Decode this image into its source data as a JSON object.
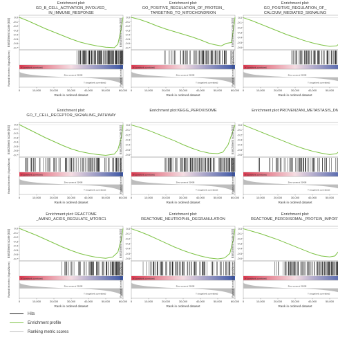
{
  "colors": {
    "hits": "#1a1a1a",
    "profile": "#7cc243",
    "ranking": "#bdbdbd",
    "positive": "#d9384e",
    "negative": "#3b55a5",
    "zero": "#888888"
  },
  "legend": [
    {
      "label": "Hits",
      "color": "#1a1a1a"
    },
    {
      "label": "Enrichment profile",
      "color": "#7cc243"
    },
    {
      "label": "Ranking metric scores",
      "color": "#bdbdbd"
    }
  ],
  "chart_data": [
    {
      "type": "line",
      "title": [
        "Enrichment plot:",
        "GO_B_CELL_ACTIVATION_INVOLVED_",
        "IN_IMMUNE_RESPONSE"
      ],
      "ylabel": "Enrichment score (ES)",
      "ylabel2": "Ranked list metric (Signal2Noise)",
      "xlabel": "Rank in ordered dataset",
      "xticks": [
        "0",
        "10,000",
        "20,000",
        "30,000",
        "40,000",
        "50,000",
        "60,000"
      ],
      "yticks": [
        "0.0",
        "-0.1",
        "-0.2",
        "-0.3",
        "-0.4",
        "-0.5",
        "-0.6",
        "-0.7"
      ],
      "ylim": [
        -0.75,
        0.05
      ],
      "x": [
        0,
        5000,
        10000,
        15000,
        20000,
        25000,
        30000,
        35000,
        40000,
        45000,
        50000,
        55000,
        57000,
        58500,
        60000
      ],
      "es": [
        0,
        -0.08,
        -0.17,
        -0.26,
        -0.34,
        -0.42,
        -0.5,
        -0.57,
        -0.62,
        -0.66,
        -0.69,
        -0.7,
        -0.62,
        -0.35,
        0
      ],
      "hits_start": 0.55,
      "pos_label": "'h' (positively correlated)",
      "zero_label": "Zero cross at 31408",
      "neg_label": "'l' (negatively correlated)"
    },
    {
      "type": "line",
      "title": [
        "Enrichment plot:",
        "GO_POSITIVE_REGULATION_OF_PROTEIN_",
        "TARGETING_TO_MITOCHONDRION"
      ],
      "ylabel": "Enrichment score (ES)",
      "ylabel2": "Ranked list metric (Signal2Noise)",
      "xlabel": "Rank in ordered dataset",
      "xticks": [
        "0",
        "10,000",
        "20,000",
        "30,000",
        "40,000",
        "50,000",
        "60,000"
      ],
      "yticks": [
        "0.0",
        "-0.1",
        "-0.2",
        "-0.3",
        "-0.4",
        "-0.5",
        "-0.6",
        "-0.7"
      ],
      "ylim": [
        -0.75,
        0.05
      ],
      "x": [
        0,
        5000,
        10000,
        15000,
        20000,
        25000,
        30000,
        35000,
        40000,
        45000,
        48000,
        52000,
        55000,
        58000,
        60000
      ],
      "es": [
        0,
        -0.05,
        -0.12,
        -0.2,
        -0.27,
        -0.33,
        -0.39,
        -0.45,
        -0.52,
        -0.6,
        -0.63,
        -0.66,
        -0.6,
        -0.58,
        0
      ],
      "hits_start": 0.3,
      "pos_label": "'h' (positively correlated)",
      "zero_label": "Zero cross at 31408",
      "neg_label": "'l' (negatively correlated)"
    },
    {
      "type": "line",
      "title": [
        "Enrichment plot:",
        "GO_POSITIVE_REGULATION_OF_",
        "CALCIUM_MEDIATED_SIGNALING"
      ],
      "ylabel": "Enrichment score (ES)",
      "ylabel2": "Ranked list metric (Signal2Noise)",
      "xlabel": "Rank in ordered dataset",
      "xticks": [
        "0",
        "10,000",
        "20,000",
        "30,000",
        "40,000",
        "50,000",
        "60,000"
      ],
      "yticks": [
        "0.0",
        "-0.1",
        "-0.2",
        "-0.3",
        "-0.4",
        "-0.5",
        "-0.6"
      ],
      "ylim": [
        -0.65,
        0.05
      ],
      "x": [
        0,
        5000,
        10000,
        15000,
        20000,
        25000,
        30000,
        35000,
        40000,
        45000,
        50000,
        54000,
        57000,
        59000,
        60000
      ],
      "es": [
        0,
        -0.06,
        -0.13,
        -0.2,
        -0.27,
        -0.34,
        -0.4,
        -0.46,
        -0.51,
        -0.55,
        -0.58,
        -0.57,
        -0.48,
        -0.25,
        0
      ],
      "hits_start": 0.45,
      "pos_label": "'h' (positively correlated)",
      "zero_label": "Zero cross at 31408",
      "neg_label": "'l' (negatively correlated)"
    },
    {
      "type": "line",
      "title": [
        "Enrichment plot:",
        "GO_T_CELL_RECEPTOR_SIGNALING_PATHWAY"
      ],
      "ylabel": "Enrichment score (ES)",
      "ylabel2": "Ranked list metric (Signal2Noise)",
      "xlabel": "Rank in ordered dataset",
      "xticks": [
        "0",
        "10,000",
        "20,000",
        "30,000",
        "40,000",
        "50,000",
        "60,000"
      ],
      "yticks": [
        "0.0",
        "-0.1",
        "-0.2",
        "-0.3",
        "-0.4",
        "-0.5",
        "-0.6",
        "-0.7"
      ],
      "ylim": [
        -0.75,
        0.05
      ],
      "x": [
        0,
        5000,
        10000,
        15000,
        20000,
        25000,
        30000,
        35000,
        40000,
        45000,
        50000,
        55000,
        57000,
        59000,
        60000
      ],
      "es": [
        0,
        -0.1,
        -0.2,
        -0.3,
        -0.39,
        -0.48,
        -0.56,
        -0.62,
        -0.66,
        -0.69,
        -0.71,
        -0.68,
        -0.58,
        -0.3,
        0
      ],
      "hits_start": 0.05,
      "pos_label": "'h' (positively correlated)",
      "zero_label": "Zero cross at 31408",
      "neg_label": "'l' (negatively correlated)"
    },
    {
      "type": "line",
      "title": [
        "Enrichment plot:KEGG_PEROXISOME"
      ],
      "ylabel": "Enrichment score (ES)",
      "ylabel2": "Ranked list metric (Signal2Noise)",
      "xlabel": "Rank in ordered dataset",
      "xticks": [
        "0",
        "10,000",
        "20,000",
        "30,000",
        "40,000",
        "50,000",
        "60,000"
      ],
      "yticks": [
        "0.0",
        "-0.1",
        "-0.2",
        "-0.3",
        "-0.4",
        "-0.5",
        "-0.6"
      ],
      "ylim": [
        -0.65,
        0.05
      ],
      "x": [
        0,
        5000,
        10000,
        15000,
        20000,
        25000,
        30000,
        35000,
        40000,
        45000,
        50000,
        53000,
        56000,
        58500,
        60000
      ],
      "es": [
        0,
        -0.05,
        -0.11,
        -0.18,
        -0.25,
        -0.32,
        -0.4,
        -0.47,
        -0.53,
        -0.57,
        -0.58,
        -0.55,
        -0.4,
        -0.15,
        0
      ],
      "hits_start": 0.3,
      "pos_label": "'h' (positively correlated)",
      "zero_label": "Zero cross at 31408",
      "neg_label": "'l' (negatively correlated)"
    },
    {
      "type": "line",
      "title": [
        "Enrichment plot:PROVENZANI_METASTASIS_DN"
      ],
      "ylabel": "Enrichment score (ES)",
      "ylabel2": "Ranked list metric (Signal2Noise)",
      "xlabel": "Rank in ordered dataset",
      "xticks": [
        "0",
        "10,000",
        "20,000",
        "30,000",
        "40,000",
        "50,000",
        "60,000"
      ],
      "yticks": [
        "0.0",
        "-0.1",
        "-0.2",
        "-0.3",
        "-0.4",
        "-0.5",
        "-0.6"
      ],
      "ylim": [
        -0.65,
        0.05
      ],
      "x": [
        0,
        5000,
        10000,
        15000,
        20000,
        25000,
        30000,
        35000,
        40000,
        45000,
        50000,
        54000,
        57000,
        59000,
        60000
      ],
      "es": [
        0,
        -0.07,
        -0.14,
        -0.21,
        -0.28,
        -0.35,
        -0.42,
        -0.48,
        -0.53,
        -0.57,
        -0.6,
        -0.58,
        -0.48,
        -0.2,
        0
      ],
      "hits_start": 0.05,
      "pos_label": "'h' (positively correlated)",
      "zero_label": "Zero cross at 31408",
      "neg_label": "'l' (negatively correlated)"
    },
    {
      "type": "line",
      "title": [
        "Enrichment plot: REACTOME",
        "_AMINO_ACIDS_REGULATE_MTORC1"
      ],
      "ylabel": "Enrichment score (ES)",
      "ylabel2": "Ranked list metric (Signal2Noise)",
      "xlabel": "Rank in ordered dataset",
      "xticks": [
        "0",
        "10,000",
        "20,000",
        "30,000",
        "40,000",
        "50,000",
        "60,000"
      ],
      "yticks": [
        "0.0",
        "-0.1",
        "-0.2",
        "-0.3",
        "-0.4",
        "-0.5",
        "-0.6",
        "-0.7"
      ],
      "ylim": [
        -0.75,
        0.05
      ],
      "x": [
        0,
        5000,
        10000,
        15000,
        20000,
        25000,
        30000,
        35000,
        40000,
        45000,
        50000,
        54000,
        57000,
        59000,
        60000
      ],
      "es": [
        0,
        -0.08,
        -0.16,
        -0.25,
        -0.34,
        -0.43,
        -0.51,
        -0.58,
        -0.63,
        -0.67,
        -0.69,
        -0.66,
        -0.55,
        -0.25,
        0
      ],
      "hits_start": 0.4,
      "pos_label": "'h' (positively correlated)",
      "zero_label": "Zero cross at 31408",
      "neg_label": "'l' (negatively correlated)"
    },
    {
      "type": "line",
      "title": [
        "Enrichment plot:",
        "REACTOME_NEUTROPHIL_DEGRANULATION"
      ],
      "ylabel": "Enrichment score (ES)",
      "ylabel2": "Ranked list metric (Signal2Noise)",
      "xlabel": "Rank in ordered dataset",
      "xticks": [
        "0",
        "10,000",
        "20,000",
        "30,000",
        "40,000",
        "50,000",
        "60,000"
      ],
      "yticks": [
        "0.0",
        "-0.1",
        "-0.2",
        "-0.3",
        "-0.4",
        "-0.5",
        "-0.6"
      ],
      "ylim": [
        -0.65,
        0.05
      ],
      "x": [
        0,
        5000,
        10000,
        15000,
        20000,
        25000,
        30000,
        35000,
        40000,
        45000,
        50000,
        54000,
        57000,
        59000,
        60000
      ],
      "es": [
        0,
        -0.06,
        -0.13,
        -0.21,
        -0.29,
        -0.37,
        -0.44,
        -0.5,
        -0.55,
        -0.59,
        -0.61,
        -0.59,
        -0.5,
        -0.22,
        0
      ],
      "hits_start": 0.08,
      "pos_label": "'h' (positively correlated)",
      "zero_label": "Zero cross at 31408",
      "neg_label": "'l' (negatively correlated)"
    },
    {
      "type": "line",
      "title": [
        "Enrichment plot:",
        "REACTOME_PEROXISOMAL_PROTEIN_IMPORT"
      ],
      "ylabel": "Enrichment score (ES)",
      "ylabel2": "Ranked list metric (Signal2Noise)",
      "xlabel": "Rank in ordered dataset",
      "xticks": [
        "0",
        "10,000",
        "20,000",
        "30,000",
        "40,000",
        "50,000",
        "60,000"
      ],
      "yticks": [
        "0.0",
        "-0.1",
        "-0.2",
        "-0.3",
        "-0.4",
        "-0.5",
        "-0.6"
      ],
      "ylim": [
        -0.65,
        0.05
      ],
      "x": [
        0,
        5000,
        10000,
        15000,
        20000,
        25000,
        30000,
        35000,
        40000,
        45000,
        50000,
        53000,
        56000,
        58500,
        60000
      ],
      "es": [
        0,
        -0.05,
        -0.1,
        -0.16,
        -0.22,
        -0.29,
        -0.36,
        -0.43,
        -0.5,
        -0.55,
        -0.57,
        -0.55,
        -0.42,
        -0.15,
        0
      ],
      "hits_start": 0.3,
      "pos_label": "'h' (positively correlated)",
      "zero_label": "Zero cross at 31408",
      "neg_label": "'l' (negatively correlated)"
    }
  ]
}
